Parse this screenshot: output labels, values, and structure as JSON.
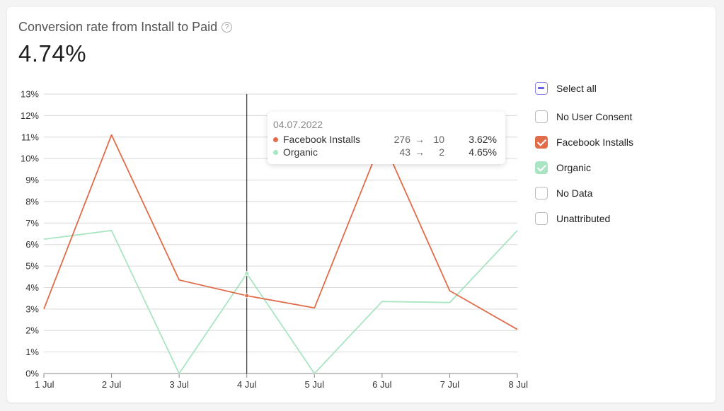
{
  "header": {
    "title": "Conversion rate from Install to Paid",
    "help_icon": "?",
    "value": "4.74%"
  },
  "tooltip": {
    "date": "04.07.2022",
    "arrow": "→",
    "rows": [
      {
        "name": "Facebook Installs",
        "from": "276",
        "to": "10",
        "pct": "3.62%",
        "color": "#e06c4a"
      },
      {
        "name": "Organic",
        "from": "43",
        "to": "2",
        "pct": "4.65%",
        "color": "#a9e5c2"
      }
    ]
  },
  "legend": {
    "items": [
      {
        "label": "Select all",
        "state": "partial"
      },
      {
        "label": "No User Consent",
        "state": "unchecked"
      },
      {
        "label": "Facebook Installs",
        "state": "checked-orange"
      },
      {
        "label": "Organic",
        "state": "checked-green"
      },
      {
        "label": "No Data",
        "state": "unchecked"
      },
      {
        "label": "Unattributed",
        "state": "unchecked"
      }
    ]
  },
  "chart_data": {
    "type": "line",
    "x": [
      "1 Jul",
      "2 Jul",
      "3 Jul",
      "4 Jul",
      "5 Jul",
      "6 Jul",
      "7 Jul",
      "8 Jul"
    ],
    "yticks": [
      "0%",
      "1%",
      "2%",
      "3%",
      "4%",
      "5%",
      "6%",
      "7%",
      "8%",
      "9%",
      "10%",
      "11%",
      "12%",
      "13%"
    ],
    "ylim": [
      0,
      13
    ],
    "grid": true,
    "legend_position": "right",
    "highlight_index": 3,
    "series": [
      {
        "name": "Facebook Installs",
        "color": "#e06c4a",
        "values": [
          3.0,
          11.1,
          4.35,
          3.62,
          3.05,
          10.9,
          3.85,
          2.05
        ]
      },
      {
        "name": "Organic",
        "color": "#a9e5c2",
        "values": [
          6.25,
          6.65,
          0.0,
          4.65,
          0.0,
          3.35,
          3.3,
          6.65
        ]
      }
    ]
  }
}
